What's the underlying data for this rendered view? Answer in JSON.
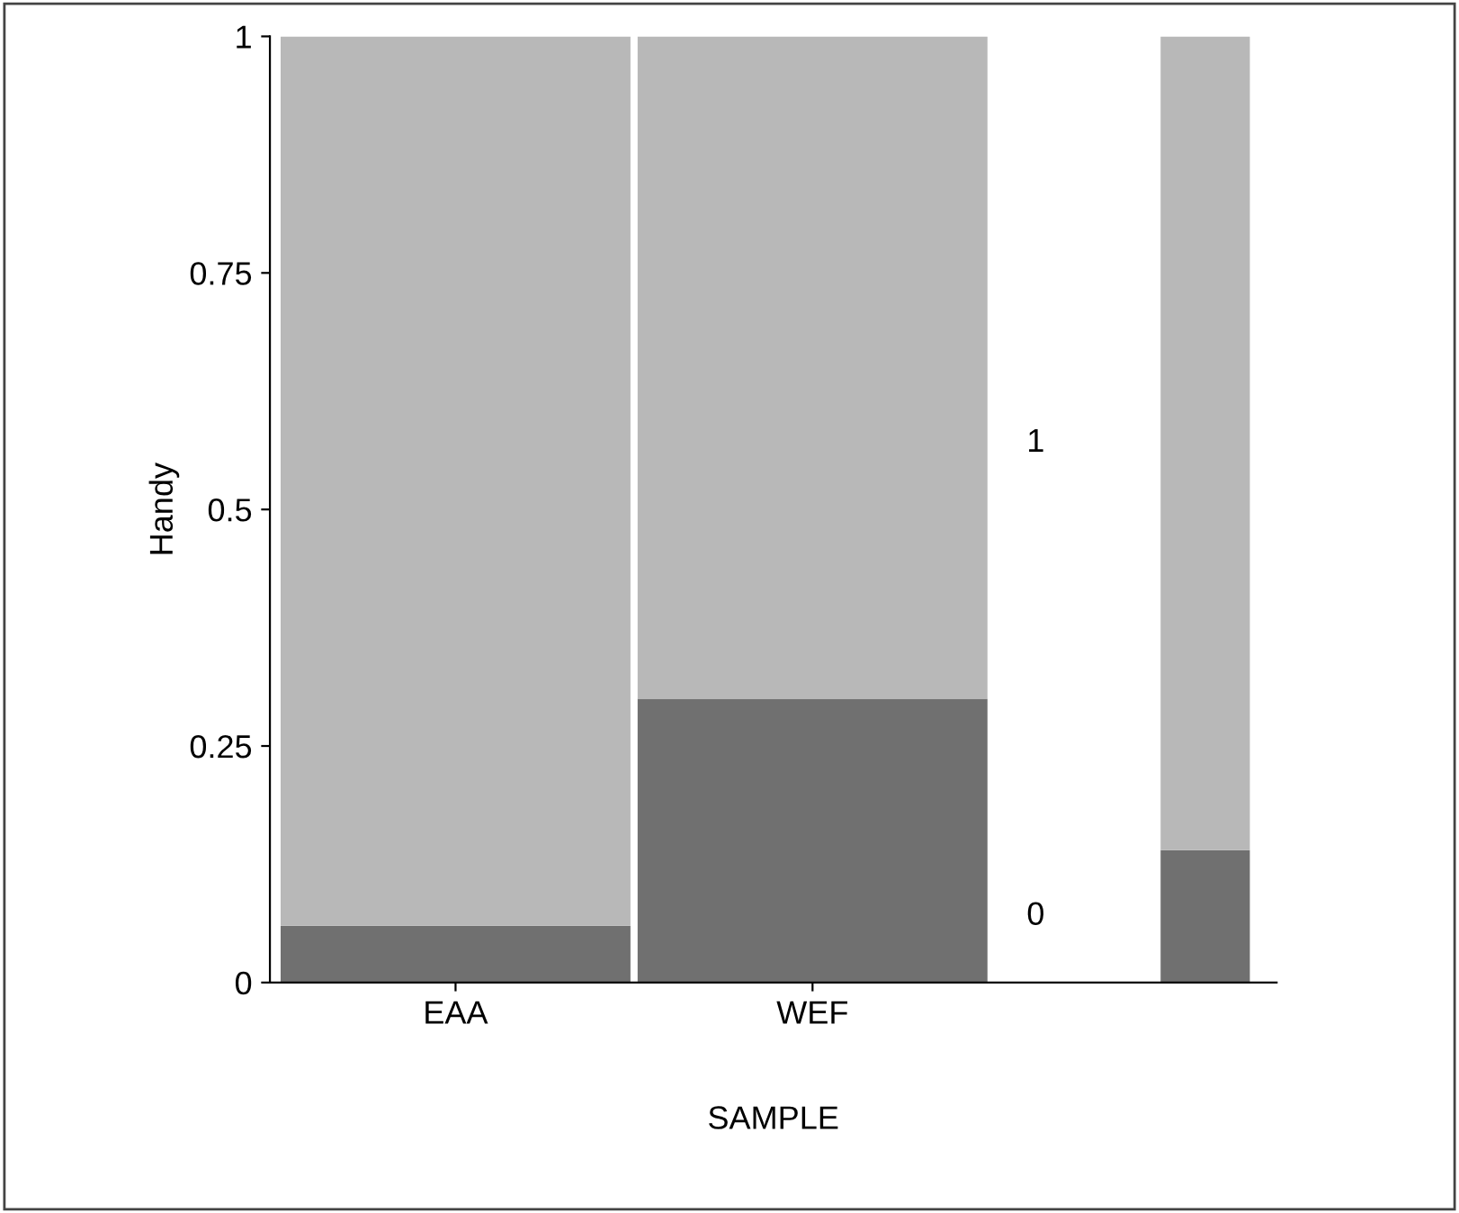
{
  "chart_data": {
    "type": "bar",
    "stacked": true,
    "xlabel": "SAMPLE",
    "ylabel": "Handy",
    "categories": [
      "EAA",
      "WEF",
      null
    ],
    "series": [
      {
        "name": "0",
        "color": "#707070",
        "values": [
          0.06,
          0.3,
          0.14
        ]
      },
      {
        "name": "1",
        "color": "#b8b8b8",
        "values": [
          0.94,
          0.7,
          0.86
        ]
      }
    ],
    "ylim": [
      0,
      1
    ],
    "yticks": [
      0,
      0.25,
      0.5,
      0.75,
      1
    ],
    "grid": false,
    "legend": false
  }
}
